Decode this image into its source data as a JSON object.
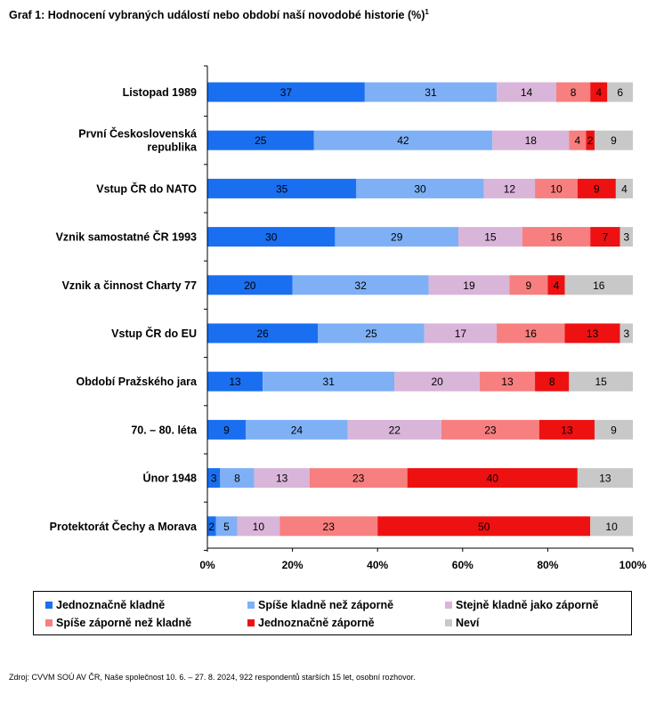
{
  "title": "Graf 1: Hodnocení vybraných událostí nebo období naší novodobé historie (%)",
  "title_sup": "1",
  "source": "Zdroj: CVVM SOÚ AV ČR, Naše společnost 10. 6. – 27. 8. 2024, 922 respondentů starších 15 let, osobní rozhovor.",
  "chart_data": {
    "type": "bar",
    "orientation": "horizontal",
    "stacked": "percent",
    "xlim": [
      0,
      100
    ],
    "ticks": [
      "0%",
      "20%",
      "40%",
      "60%",
      "80%",
      "100%"
    ],
    "grid": false,
    "legend_position": "bottom",
    "categories": [
      [
        "Listopad 1989"
      ],
      [
        "První Československá",
        "republika"
      ],
      [
        "Vstup ČR do NATO"
      ],
      [
        "Vznik samostatné ČR 1993"
      ],
      [
        "Vznik a činnost Charty 77"
      ],
      [
        "Vstup ČR do EU"
      ],
      [
        "Období Pražského jara"
      ],
      [
        "70. – 80. léta"
      ],
      [
        "Únor 1948"
      ],
      [
        "Protektorát Čechy a Morava"
      ]
    ],
    "series": [
      {
        "name": "Jednoznačně kladně",
        "color": "#1a6ff0",
        "values": [
          37,
          25,
          35,
          30,
          20,
          26,
          13,
          9,
          3,
          2
        ]
      },
      {
        "name": "Spíše kladně než záporně",
        "color": "#7fb0f5",
        "values": [
          31,
          42,
          30,
          29,
          32,
          25,
          31,
          24,
          8,
          5
        ]
      },
      {
        "name": "Stejně kladně jako záporně",
        "color": "#d9b5d9",
        "values": [
          14,
          18,
          12,
          15,
          19,
          17,
          20,
          22,
          13,
          10
        ]
      },
      {
        "name": "Spíše záporně než kladně",
        "color": "#f77f7f",
        "values": [
          8,
          4,
          10,
          16,
          9,
          16,
          13,
          23,
          23,
          23
        ]
      },
      {
        "name": "Jednoznačně záporně",
        "color": "#ee1111",
        "values": [
          4,
          2,
          9,
          7,
          4,
          13,
          8,
          13,
          40,
          50
        ]
      },
      {
        "name": "Neví",
        "color": "#c8c8c8",
        "values": [
          6,
          9,
          4,
          3,
          16,
          3,
          15,
          9,
          13,
          10
        ]
      }
    ]
  }
}
